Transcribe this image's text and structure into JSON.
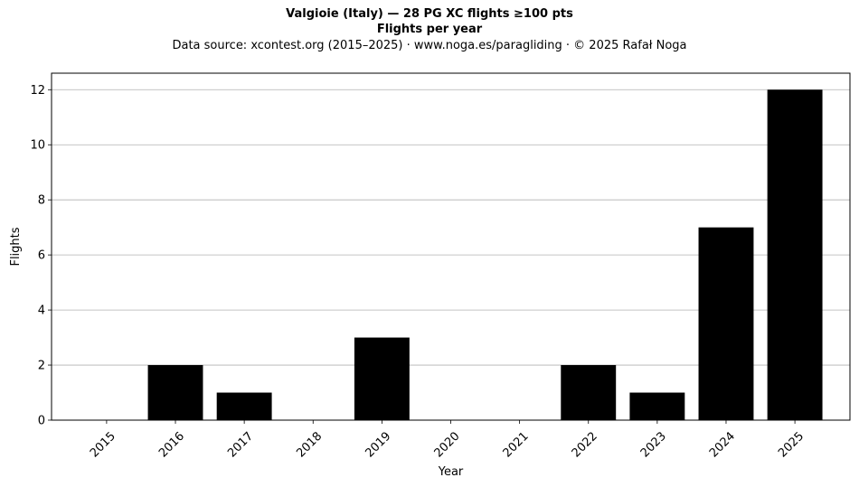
{
  "chart_data": {
    "type": "bar",
    "title": "Valgioie (Italy)  —  28 PG XC flights ≥100 pts",
    "subtitle": "Flights per year",
    "source_note": "Data source: xcontest.org (2015–2025)  ·  www.noga.es/paragliding  ·  © 2025 Rafał Noga",
    "xlabel": "Year",
    "ylabel": "Flights",
    "categories": [
      "2015",
      "2016",
      "2017",
      "2018",
      "2019",
      "2020",
      "2021",
      "2022",
      "2023",
      "2024",
      "2025"
    ],
    "values": [
      0,
      2,
      1,
      0,
      3,
      0,
      0,
      2,
      1,
      7,
      12
    ],
    "ylim": [
      0,
      12.6
    ],
    "yticks": [
      0,
      2,
      4,
      6,
      8,
      10,
      12
    ],
    "grid": "y",
    "bar_color": "#000000",
    "grid_color": "#b0b0b0"
  }
}
